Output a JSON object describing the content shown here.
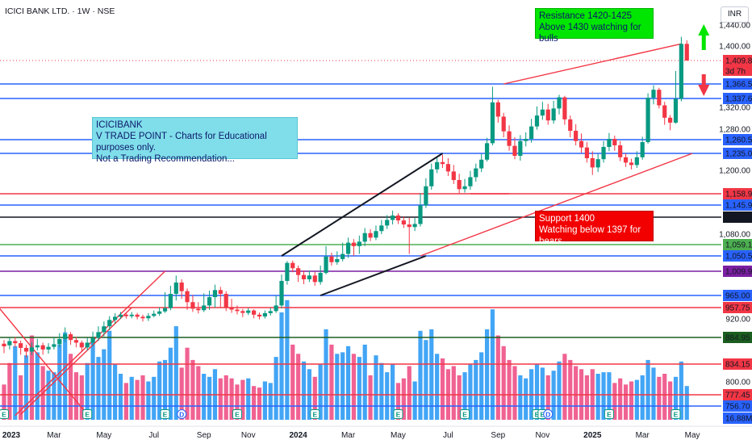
{
  "header": {
    "symbol_label": "ICICI BANK LTD. · 1W · NSE",
    "currency": "INR",
    "countdown": "3d 7h"
  },
  "colors": {
    "up": "#089981",
    "down": "#f23645",
    "vol_up": "#42a5f5",
    "vol_down": "#f06292",
    "resistance_box": "#00e600",
    "support_box": "#f20000",
    "info_box": "#80deea"
  },
  "annotations": {
    "resistance": {
      "line1": "Resistance 1420-1425",
      "line2": "Above 1430 watching for bulls"
    },
    "support": {
      "line1": "Support 1400",
      "line2": "Watching below 1397 for bears"
    },
    "info": {
      "line1": "ICICIBANK",
      "line2": "V TRADE POINT - Charts for Educational purposes only.",
      "line3": "Not a Trading Recommendation..."
    }
  },
  "chart_data": {
    "type": "candlestick",
    "y_axis_ticks": [
      "1,440.00",
      "1,400.00",
      "1,320.00",
      "1,280.00",
      "1,200.00",
      "1,080.00",
      "920.00",
      "800.00"
    ],
    "x_axis_ticks": [
      "2023",
      "Mar",
      "May",
      "Jul",
      "Sep",
      "Nov",
      "2024",
      "Mar",
      "May",
      "Jul",
      "Sep",
      "Nov",
      "2025",
      "Mar",
      "May"
    ],
    "price_labels": [
      {
        "label": "1,409.80",
        "value": 1409.8,
        "color": "#f23645"
      },
      {
        "label": "1,366.55",
        "value": 1366.55,
        "color": "#2962ff"
      },
      {
        "label": "1,337.65",
        "value": 1337.65,
        "color": "#2962ff"
      },
      {
        "label": "1,260.55",
        "value": 1260.55,
        "color": "#2962ff"
      },
      {
        "label": "1,235.00",
        "value": 1235.0,
        "color": "#2962ff"
      },
      {
        "label": "1,158.90",
        "value": 1158.9,
        "color": "#f23645"
      },
      {
        "label": "1,145.90",
        "value": 1145.9,
        "color": "#2962ff"
      },
      {
        "label": "1,113.50",
        "value": 1113.5,
        "color": "#131722"
      },
      {
        "label": "1,059.15",
        "value": 1059.15,
        "color": "#4caf50"
      },
      {
        "label": "1,050.50",
        "value": 1050.5,
        "color": "#2962ff"
      },
      {
        "label": "1,009.95",
        "value": 1009.95,
        "color": "#7b1fa2"
      },
      {
        "label": "965.00",
        "value": 965.0,
        "color": "#2962ff"
      },
      {
        "label": "957.75",
        "value": 957.75,
        "color": "#f23645"
      },
      {
        "label": "884.95",
        "value": 884.95,
        "color": "#1b5e20"
      },
      {
        "label": "834.15",
        "value": 834.15,
        "color": "#f23645"
      },
      {
        "label": "777.45",
        "value": 777.45,
        "color": "#f23645"
      },
      {
        "label": "756.70",
        "value": 756.7,
        "color": "#2962ff"
      }
    ],
    "volume_label": "16.88M",
    "horizontal_levels": [
      {
        "value": 1366.55,
        "color": "#2962ff"
      },
      {
        "value": 1337.65,
        "color": "#2962ff"
      },
      {
        "value": 1260.55,
        "color": "#2962ff"
      },
      {
        "value": 1235.0,
        "color": "#2962ff"
      },
      {
        "value": 1158.9,
        "color": "#f23645"
      },
      {
        "value": 1145.9,
        "color": "#2962ff"
      },
      {
        "value": 1113.5,
        "color": "#131722"
      },
      {
        "value": 1059.15,
        "color": "#4caf50"
      },
      {
        "value": 1050.5,
        "color": "#2962ff"
      },
      {
        "value": 1009.95,
        "color": "#7b1fa2"
      },
      {
        "value": 965.0,
        "color": "#2962ff"
      },
      {
        "value": 957.75,
        "color": "#f23645"
      },
      {
        "value": 884.95,
        "color": "#1b5e20"
      },
      {
        "value": 834.15,
        "color": "#f23645"
      },
      {
        "value": 777.45,
        "color": "#f23645"
      },
      {
        "value": 756.7,
        "color": "#2962ff"
      }
    ],
    "candles": [
      [
        873,
        868,
        880,
        855
      ],
      [
        870,
        878,
        884,
        862
      ],
      [
        878,
        874,
        886,
        866
      ],
      [
        874,
        865,
        879,
        852
      ],
      [
        865,
        858,
        871,
        846
      ],
      [
        858,
        866,
        876,
        851
      ],
      [
        866,
        870,
        882,
        860
      ],
      [
        870,
        862,
        875,
        852
      ],
      [
        862,
        867,
        874,
        854
      ],
      [
        867,
        872,
        885,
        862
      ],
      [
        872,
        882,
        893,
        866
      ],
      [
        882,
        891,
        904,
        876
      ],
      [
        891,
        880,
        895,
        871
      ],
      [
        880,
        875,
        886,
        866
      ],
      [
        875,
        866,
        879,
        857
      ],
      [
        866,
        875,
        884,
        860
      ],
      [
        875,
        884,
        896,
        868
      ],
      [
        884,
        895,
        906,
        878
      ],
      [
        895,
        906,
        915,
        887
      ],
      [
        906,
        918,
        929,
        899
      ],
      [
        918,
        927,
        939,
        911
      ],
      [
        927,
        934,
        943,
        920
      ],
      [
        934,
        929,
        939,
        921
      ],
      [
        929,
        934,
        943,
        922
      ],
      [
        934,
        927,
        940,
        919
      ],
      [
        927,
        922,
        934,
        915
      ],
      [
        922,
        930,
        939,
        916
      ],
      [
        930,
        937,
        948,
        925
      ],
      [
        937,
        945,
        958,
        930
      ],
      [
        945,
        956,
        971,
        940
      ],
      [
        956,
        968,
        983,
        949
      ],
      [
        968,
        989,
        1002,
        962
      ],
      [
        989,
        973,
        995,
        963
      ],
      [
        973,
        961,
        978,
        950
      ],
      [
        961,
        954,
        966,
        943
      ],
      [
        954,
        949,
        961,
        938
      ],
      [
        949,
        959,
        969,
        943
      ],
      [
        959,
        964,
        974,
        950
      ],
      [
        964,
        975,
        985,
        957
      ],
      [
        975,
        968,
        981,
        958
      ],
      [
        968,
        958,
        973,
        946
      ],
      [
        958,
        951,
        963,
        940
      ],
      [
        951,
        946,
        959,
        935
      ],
      [
        946,
        940,
        953,
        926
      ],
      [
        940,
        948,
        956,
        933
      ],
      [
        948,
        934,
        952,
        922
      ],
      [
        934,
        928,
        941,
        919
      ],
      [
        928,
        939,
        948,
        921
      ],
      [
        939,
        946,
        957,
        931
      ],
      [
        946,
        959,
        965,
        940
      ],
      [
        959,
        992,
        1004,
        955
      ],
      [
        992,
        1032,
        1037,
        985
      ],
      [
        1032,
        1018,
        1038,
        1008
      ],
      [
        1018,
        1003,
        1025,
        990
      ],
      [
        1003,
        995,
        1012,
        986
      ],
      [
        995,
        1002,
        1011,
        990
      ],
      [
        1002,
        990,
        1009,
        983
      ],
      [
        990,
        1007,
        1025,
        985
      ],
      [
        1007,
        1049,
        1058,
        1004
      ],
      [
        1049,
        1034,
        1053,
        1025
      ],
      [
        1034,
        1042,
        1054,
        1027
      ],
      [
        1042,
        1052,
        1063,
        1036
      ],
      [
        1052,
        1063,
        1073,
        1045
      ],
      [
        1063,
        1058,
        1070,
        1050
      ],
      [
        1058,
        1065,
        1077,
        1052
      ],
      [
        1065,
        1082,
        1092,
        1058
      ],
      [
        1082,
        1073,
        1090,
        1066
      ],
      [
        1073,
        1086,
        1097,
        1068
      ],
      [
        1086,
        1097,
        1108,
        1080
      ],
      [
        1097,
        1108,
        1119,
        1090
      ],
      [
        1108,
        1118,
        1131,
        1099
      ],
      [
        1118,
        1107,
        1124,
        1100
      ],
      [
        1107,
        1099,
        1116,
        1092
      ],
      [
        1099,
        1094,
        1112,
        1052
      ],
      [
        1094,
        1100,
        1112,
        1086
      ],
      [
        1100,
        1145,
        1160,
        1095
      ],
      [
        1145,
        1172,
        1186,
        1138
      ],
      [
        1172,
        1202,
        1214,
        1166
      ],
      [
        1202,
        1217,
        1226,
        1195
      ],
      [
        1217,
        1213,
        1232,
        1205
      ],
      [
        1213,
        1198,
        1225,
        1190
      ],
      [
        1198,
        1183,
        1211,
        1176
      ],
      [
        1183,
        1167,
        1194,
        1160
      ],
      [
        1167,
        1172,
        1185,
        1161
      ],
      [
        1172,
        1188,
        1199,
        1166
      ],
      [
        1188,
        1204,
        1214,
        1180
      ],
      [
        1204,
        1222,
        1234,
        1197
      ],
      [
        1222,
        1254,
        1264,
        1218
      ],
      [
        1254,
        1330,
        1361,
        1250
      ],
      [
        1330,
        1303,
        1335,
        1292
      ],
      [
        1303,
        1276,
        1310,
        1265
      ],
      [
        1276,
        1249,
        1287,
        1240
      ],
      [
        1249,
        1230,
        1265,
        1223
      ],
      [
        1230,
        1258,
        1269,
        1220
      ],
      [
        1258,
        1262,
        1274,
        1248
      ],
      [
        1262,
        1285,
        1299,
        1255
      ],
      [
        1285,
        1305,
        1322,
        1279
      ],
      [
        1305,
        1316,
        1331,
        1297
      ],
      [
        1316,
        1296,
        1327,
        1288
      ],
      [
        1296,
        1318,
        1333,
        1290
      ],
      [
        1318,
        1340,
        1345,
        1307
      ],
      [
        1340,
        1298,
        1343,
        1288
      ],
      [
        1298,
        1277,
        1305,
        1265
      ],
      [
        1277,
        1258,
        1289,
        1250
      ],
      [
        1258,
        1246,
        1272,
        1236
      ],
      [
        1246,
        1225,
        1256,
        1216
      ],
      [
        1225,
        1206,
        1239,
        1192
      ],
      [
        1206,
        1223,
        1234,
        1197
      ],
      [
        1223,
        1247,
        1258,
        1216
      ],
      [
        1247,
        1262,
        1273,
        1239
      ],
      [
        1262,
        1250,
        1268,
        1240
      ],
      [
        1250,
        1227,
        1258,
        1219
      ],
      [
        1227,
        1216,
        1235,
        1207
      ],
      [
        1216,
        1211,
        1224,
        1202
      ],
      [
        1211,
        1227,
        1239,
        1205
      ],
      [
        1227,
        1256,
        1266,
        1222
      ],
      [
        1256,
        1339,
        1348,
        1253
      ],
      [
        1339,
        1355,
        1364,
        1326
      ],
      [
        1355,
        1324,
        1359,
        1318
      ],
      [
        1324,
        1301,
        1331,
        1288
      ],
      [
        1301,
        1292,
        1306,
        1278
      ],
      [
        1292,
        1337,
        1378,
        1290
      ],
      [
        1337,
        1424,
        1430,
        1332
      ],
      [
        1424,
        1409.8,
        1427,
        1403
      ]
    ],
    "volumes": [
      [
        23,
        "d"
      ],
      [
        37,
        "d"
      ],
      [
        48,
        "u"
      ],
      [
        29,
        "d"
      ],
      [
        42,
        "u"
      ],
      [
        55,
        "d"
      ],
      [
        44,
        "u"
      ],
      [
        35,
        "d"
      ],
      [
        32,
        "u"
      ],
      [
        31,
        "u"
      ],
      [
        49,
        "u"
      ],
      [
        57,
        "u"
      ],
      [
        43,
        "d"
      ],
      [
        31,
        "d"
      ],
      [
        29,
        "d"
      ],
      [
        37,
        "u"
      ],
      [
        52,
        "u"
      ],
      [
        41,
        "u"
      ],
      [
        46,
        "u"
      ],
      [
        58,
        "u"
      ],
      [
        36,
        "u"
      ],
      [
        30,
        "u"
      ],
      [
        24,
        "d"
      ],
      [
        28,
        "u"
      ],
      [
        26,
        "d"
      ],
      [
        29,
        "d"
      ],
      [
        25,
        "u"
      ],
      [
        28,
        "u"
      ],
      [
        38,
        "u"
      ],
      [
        39,
        "u"
      ],
      [
        47,
        "u"
      ],
      [
        61,
        "u"
      ],
      [
        34,
        "d"
      ],
      [
        47,
        "d"
      ],
      [
        39,
        "d"
      ],
      [
        35,
        "d"
      ],
      [
        30,
        "u"
      ],
      [
        28,
        "u"
      ],
      [
        33,
        "u"
      ],
      [
        27,
        "d"
      ],
      [
        29,
        "d"
      ],
      [
        27,
        "d"
      ],
      [
        23,
        "d"
      ],
      [
        26,
        "d"
      ],
      [
        27,
        "u"
      ],
      [
        22,
        "d"
      ],
      [
        21,
        "d"
      ],
      [
        25,
        "u"
      ],
      [
        24,
        "u"
      ],
      [
        41,
        "u"
      ],
      [
        70,
        "u"
      ],
      [
        78,
        "u"
      ],
      [
        49,
        "d"
      ],
      [
        43,
        "d"
      ],
      [
        38,
        "u"
      ],
      [
        33,
        "u"
      ],
      [
        28,
        "d"
      ],
      [
        36,
        "u"
      ],
      [
        59,
        "u"
      ],
      [
        49,
        "d"
      ],
      [
        43,
        "u"
      ],
      [
        44,
        "u"
      ],
      [
        48,
        "u"
      ],
      [
        43,
        "d"
      ],
      [
        41,
        "u"
      ],
      [
        49,
        "u"
      ],
      [
        29,
        "d"
      ],
      [
        42,
        "u"
      ],
      [
        37,
        "u"
      ],
      [
        31,
        "u"
      ],
      [
        36,
        "u"
      ],
      [
        24,
        "d"
      ],
      [
        27,
        "d"
      ],
      [
        35,
        "d"
      ],
      [
        25,
        "u"
      ],
      [
        58,
        "u"
      ],
      [
        52,
        "u"
      ],
      [
        59,
        "u"
      ],
      [
        43,
        "u"
      ],
      [
        40,
        "d"
      ],
      [
        33,
        "d"
      ],
      [
        35,
        "d"
      ],
      [
        29,
        "d"
      ],
      [
        31,
        "u"
      ],
      [
        36,
        "u"
      ],
      [
        39,
        "u"
      ],
      [
        44,
        "u"
      ],
      [
        59,
        "u"
      ],
      [
        72,
        "u"
      ],
      [
        55,
        "d"
      ],
      [
        48,
        "d"
      ],
      [
        39,
        "d"
      ],
      [
        35,
        "d"
      ],
      [
        29,
        "u"
      ],
      [
        27,
        "u"
      ],
      [
        33,
        "u"
      ],
      [
        36,
        "u"
      ],
      [
        34,
        "u"
      ],
      [
        29,
        "d"
      ],
      [
        32,
        "u"
      ],
      [
        38,
        "u"
      ],
      [
        43,
        "d"
      ],
      [
        39,
        "d"
      ],
      [
        35,
        "d"
      ],
      [
        33,
        "d"
      ],
      [
        29,
        "d"
      ],
      [
        33,
        "d"
      ],
      [
        30,
        "u"
      ],
      [
        31,
        "u"
      ],
      [
        31,
        "u"
      ],
      [
        24,
        "d"
      ],
      [
        27,
        "d"
      ],
      [
        23,
        "d"
      ],
      [
        25,
        "d"
      ],
      [
        26,
        "u"
      ],
      [
        29,
        "u"
      ],
      [
        39,
        "u"
      ],
      [
        34,
        "u"
      ],
      [
        28,
        "d"
      ],
      [
        30,
        "d"
      ],
      [
        25,
        "d"
      ],
      [
        28,
        "u"
      ],
      [
        38,
        "u"
      ],
      [
        22,
        "u"
      ]
    ]
  }
}
